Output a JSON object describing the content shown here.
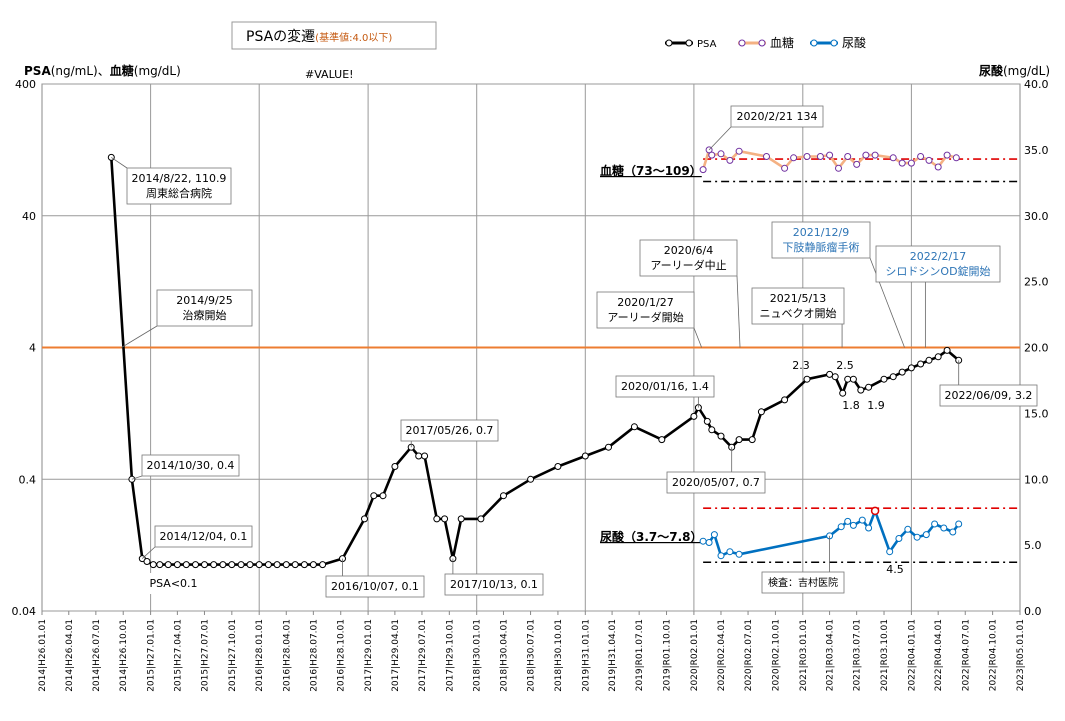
{
  "title_box": {
    "main": "PSAの変遷",
    "note": "(基準値:4.0以下)"
  },
  "left_axis_title": {
    "bold": "PSA",
    "unit1": "(ng/mL)、",
    "bold2": "血糖",
    "unit2": "(mg/dL)"
  },
  "right_axis_title": {
    "bold": "尿酸",
    "unit": "(mg/dL)"
  },
  "value_error": "#VALUE!",
  "legend": [
    {
      "name": "PSA",
      "color": "#000000"
    },
    {
      "name": "血糖",
      "color": "#f4b183"
    },
    {
      "name": "尿酸",
      "color": "#0070c0"
    }
  ],
  "ref_labels": {
    "glucose": "血糖（73～109）",
    "uric": "尿酸（3.7～7.8）"
  },
  "chart_data": {
    "type": "line",
    "log_y_left": true,
    "ylim_left": [
      0.04,
      400
    ],
    "ylim_right": [
      0,
      40
    ],
    "yticks_left": [
      "400",
      "40",
      "4",
      "0.4",
      "0.04"
    ],
    "yticks_right": [
      "40.0",
      "35.0",
      "30.0",
      "25.0",
      "20.0",
      "15.0",
      "10.0",
      "5.0",
      "0.0"
    ],
    "xticks": [
      "2014|H26.01.01",
      "2014|H26.04.01",
      "2014|H26.07.01",
      "2014|H26.10.01",
      "2015|H27.01.01",
      "2015|H27.04.01",
      "2015|H27.07.01",
      "2015|H27.10.01",
      "2016|H28.01.01",
      "2016|H28.04.01",
      "2016|H28.07.01",
      "2016|H28.10.01",
      "2017|H29.01.01",
      "2017|H29.04.01",
      "2017|H29.07.01",
      "2017|H29.10.01",
      "2018|H30.01.01",
      "2018|H30.04.01",
      "2018|H30.07.01",
      "2018|H30.10.01",
      "2019|H31.01.01",
      "2019|H31.04.01",
      "2019|R01.07.01",
      "2019|R01.10.01",
      "2020|R02.01.01",
      "2020|R02.04.01",
      "2020|R02.07.01",
      "2020|R02.10.01",
      "2021|R03.01.01",
      "2021|R03.04.01",
      "2021|R03.07.01",
      "2021|R03.10.01",
      "2022|R04.01.01",
      "2022|R04.04.01",
      "2022|R04.07.01",
      "2022|R04.10.01",
      "2023|R05.01.01"
    ],
    "grid": true,
    "threshold_left": 4,
    "series": [
      {
        "name": "PSA",
        "axis": "left",
        "color": "#000000",
        "points": [
          [
            "2014-08-22",
            110.9
          ],
          [
            "2014-10-30",
            0.4
          ],
          [
            "2014-12-04",
            0.1
          ],
          [
            "2014-12-20",
            0.095
          ],
          [
            "2015-01-10",
            0.09
          ],
          [
            "2015-02-01",
            0.09
          ],
          [
            "2015-03-01",
            0.09
          ],
          [
            "2015-04-01",
            0.09
          ],
          [
            "2015-05-01",
            0.09
          ],
          [
            "2015-06-01",
            0.09
          ],
          [
            "2015-07-01",
            0.09
          ],
          [
            "2015-08-01",
            0.09
          ],
          [
            "2015-09-01",
            0.09
          ],
          [
            "2015-10-01",
            0.09
          ],
          [
            "2015-11-01",
            0.09
          ],
          [
            "2015-12-01",
            0.09
          ],
          [
            "2016-01-01",
            0.09
          ],
          [
            "2016-02-01",
            0.09
          ],
          [
            "2016-03-01",
            0.09
          ],
          [
            "2016-04-01",
            0.09
          ],
          [
            "2016-05-01",
            0.09
          ],
          [
            "2016-06-01",
            0.09
          ],
          [
            "2016-07-01",
            0.09
          ],
          [
            "2016-08-01",
            0.09
          ],
          [
            "2016-10-07",
            0.1
          ],
          [
            "2016-12-20",
            0.2
          ],
          [
            "2017-01-20",
            0.3
          ],
          [
            "2017-02-20",
            0.3
          ],
          [
            "2017-04-01",
            0.5
          ],
          [
            "2017-05-26",
            0.7
          ],
          [
            "2017-06-20",
            0.6
          ],
          [
            "2017-07-10",
            0.6
          ],
          [
            "2017-08-20",
            0.2
          ],
          [
            "2017-09-15",
            0.2
          ],
          [
            "2017-10-13",
            0.1
          ],
          [
            "2017-11-10",
            0.2
          ],
          [
            "2018-01-15",
            0.2
          ],
          [
            "2018-04-01",
            0.3
          ],
          [
            "2018-07-01",
            0.4
          ],
          [
            "2018-10-01",
            0.5
          ],
          [
            "2019-01-01",
            0.6
          ],
          [
            "2019-03-20",
            0.7
          ],
          [
            "2019-06-15",
            1.0
          ],
          [
            "2019-09-15",
            0.8
          ],
          [
            "2020-01-01",
            1.2
          ],
          [
            "2020-01-16",
            1.4
          ],
          [
            "2020-02-15",
            1.1
          ],
          [
            "2020-03-01",
            0.95
          ],
          [
            "2020-04-01",
            0.85
          ],
          [
            "2020-05-07",
            0.7
          ],
          [
            "2020-06-01",
            0.8
          ],
          [
            "2020-07-15",
            0.8
          ],
          [
            "2020-08-15",
            1.3
          ],
          [
            "2020-11-01",
            1.6
          ],
          [
            "2021-01-15",
            2.3
          ],
          [
            "2021-04-01",
            2.5
          ],
          [
            "2021-04-20",
            2.4
          ],
          [
            "2021-05-15",
            1.8
          ],
          [
            "2021-06-01",
            2.3
          ],
          [
            "2021-06-20",
            2.3
          ],
          [
            "2021-07-15",
            1.9
          ],
          [
            "2021-08-10",
            2.0
          ],
          [
            "2021-10-01",
            2.3
          ],
          [
            "2021-11-01",
            2.4
          ],
          [
            "2021-12-01",
            2.6
          ],
          [
            "2022-01-01",
            2.8
          ],
          [
            "2022-02-01",
            3.0
          ],
          [
            "2022-03-01",
            3.2
          ],
          [
            "2022-04-01",
            3.4
          ],
          [
            "2022-05-01",
            3.8
          ],
          [
            "2022-06-09",
            3.2
          ]
        ]
      },
      {
        "name": "血糖",
        "axis": "right",
        "color": "#f4b183",
        "points": [
          [
            "2020-02-01",
            33.5
          ],
          [
            "2020-02-21",
            35.0
          ],
          [
            "2020-03-01",
            34.6
          ],
          [
            "2020-04-01",
            34.7
          ],
          [
            "2020-05-01",
            34.2
          ],
          [
            "2020-06-01",
            34.9
          ],
          [
            "2020-09-01",
            34.5
          ],
          [
            "2020-11-01",
            33.6
          ],
          [
            "2020-12-01",
            34.4
          ],
          [
            "2021-01-15",
            34.5
          ],
          [
            "2021-03-01",
            34.5
          ],
          [
            "2021-04-01",
            34.6
          ],
          [
            "2021-05-01",
            33.6
          ],
          [
            "2021-06-01",
            34.5
          ],
          [
            "2021-07-01",
            33.9
          ],
          [
            "2021-08-01",
            34.6
          ],
          [
            "2021-09-01",
            34.6
          ],
          [
            "2021-11-01",
            34.4
          ],
          [
            "2021-12-01",
            34.0
          ],
          [
            "2022-01-01",
            34.0
          ],
          [
            "2022-02-01",
            34.5
          ],
          [
            "2022-03-01",
            34.2
          ],
          [
            "2022-04-01",
            33.7
          ],
          [
            "2022-05-01",
            34.6
          ],
          [
            "2022-06-01",
            34.4
          ]
        ]
      },
      {
        "name": "尿酸",
        "axis": "right",
        "color": "#0070c0",
        "points": [
          [
            "2020-02-01",
            5.3
          ],
          [
            "2020-02-21",
            5.2
          ],
          [
            "2020-03-10",
            5.8
          ],
          [
            "2020-04-01",
            4.2
          ],
          [
            "2020-05-01",
            4.5
          ],
          [
            "2020-06-01",
            4.3
          ],
          [
            "2021-04-01",
            5.7
          ],
          [
            "2021-05-10",
            6.4
          ],
          [
            "2021-06-01",
            6.8
          ],
          [
            "2021-06-20",
            6.5
          ],
          [
            "2021-07-20",
            6.9
          ],
          [
            "2021-08-10",
            6.3
          ],
          [
            "2021-09-01",
            7.6
          ],
          [
            "2021-10-20",
            4.5
          ],
          [
            "2021-11-20",
            5.5
          ],
          [
            "2021-12-20",
            6.2
          ],
          [
            "2022-01-20",
            5.6
          ],
          [
            "2022-02-20",
            5.8
          ],
          [
            "2022-03-20",
            6.6
          ],
          [
            "2022-04-20",
            6.3
          ],
          [
            "2022-05-20",
            6.0
          ],
          [
            "2022-06-09",
            6.6
          ]
        ]
      }
    ],
    "glucose_ref_top": 34.3,
    "glucose_ref_bottom": 32.6,
    "uric_ref_top": 7.8,
    "uric_ref_bottom": 3.7
  },
  "annotations": [
    {
      "id": "a1",
      "lines": [
        "2014/8/22, 110.9",
        "周東総合病院"
      ]
    },
    {
      "id": "a2",
      "lines": [
        "2014/9/25",
        "治療開始"
      ]
    },
    {
      "id": "a3",
      "lines": [
        "2014/10/30, 0.4"
      ]
    },
    {
      "id": "a4",
      "lines": [
        "2014/12/04, 0.1"
      ]
    },
    {
      "id": "a5",
      "lines": [
        "PSA<0.1"
      ]
    },
    {
      "id": "a6",
      "lines": [
        "2016/10/07, 0.1"
      ]
    },
    {
      "id": "a7",
      "lines": [
        "2017/05/26, 0.7"
      ]
    },
    {
      "id": "a8",
      "lines": [
        "2017/10/13, 0.1"
      ]
    },
    {
      "id": "a9",
      "lines": [
        "2020/01/16, 1.4"
      ]
    },
    {
      "id": "a10",
      "lines": [
        "2020/05/07, 0.7"
      ]
    },
    {
      "id": "a11",
      "lines": [
        "2020/1/27",
        "アーリーダ開始"
      ]
    },
    {
      "id": "a12",
      "lines": [
        "2020/6/4",
        "アーリーダ中止"
      ]
    },
    {
      "id": "a13",
      "lines": [
        "2020/2/21 134"
      ]
    },
    {
      "id": "a14",
      "lines": [
        "2021/5/13",
        "ニュベクオ開始"
      ]
    },
    {
      "id": "a15",
      "lines": [
        "2021/12/9",
        "下肢静脈瘤手術"
      ]
    },
    {
      "id": "a16",
      "lines": [
        "2022/2/17",
        "シロドシンOD錠開始"
      ]
    },
    {
      "id": "a17",
      "lines": [
        "2022/06/09, 3.2"
      ]
    },
    {
      "id": "a18",
      "lines": [
        "検査：吉村医院"
      ]
    }
  ],
  "point_labels": [
    "2.3",
    "2.5",
    "1.8",
    "1.9",
    "4.5"
  ]
}
